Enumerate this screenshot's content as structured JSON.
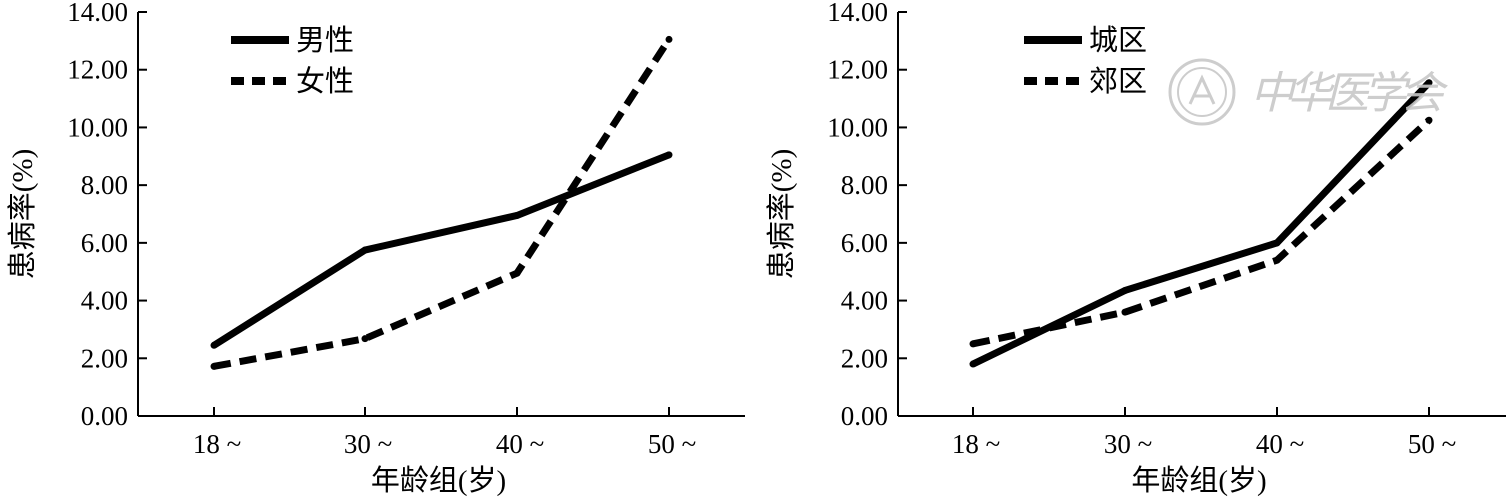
{
  "chart_data": [
    {
      "type": "line",
      "categories": [
        "18 ~",
        "30 ~",
        "40 ~",
        "50 ~"
      ],
      "series": [
        {
          "name": "男性",
          "style": "solid",
          "values": [
            2.45,
            5.75,
            6.95,
            9.05
          ]
        },
        {
          "name": "女性",
          "style": "dashed",
          "values": [
            1.72,
            2.68,
            4.95,
            13.05
          ]
        }
      ],
      "xlabel": "年龄组(岁)",
      "ylabel": "患病率(%)",
      "ylim": [
        0,
        14
      ],
      "yticks": [
        "0.00",
        "2.00",
        "4.00",
        "6.00",
        "8.00",
        "10.00",
        "12.00",
        "14.00"
      ],
      "grid": false,
      "legend": "top-left"
    },
    {
      "type": "line",
      "categories": [
        "18 ~",
        "30 ~",
        "40 ~",
        "50 ~"
      ],
      "series": [
        {
          "name": "城区",
          "style": "solid",
          "values": [
            1.8,
            4.35,
            6.0,
            11.55
          ]
        },
        {
          "name": "郊区",
          "style": "dashed",
          "values": [
            2.5,
            3.6,
            5.4,
            10.25
          ]
        }
      ],
      "xlabel": "年龄组(岁)",
      "ylabel": "患病率(%)",
      "ylim": [
        0,
        14
      ],
      "yticks": [
        "0.00",
        "2.00",
        "4.00",
        "6.00",
        "8.00",
        "10.00",
        "12.00",
        "14.00"
      ],
      "grid": false,
      "legend": "top-left"
    }
  ],
  "colors": {
    "line": "#000000",
    "axis": "#000000",
    "watermark": "#c8c8c8"
  },
  "watermark": {
    "text": "中华医学会",
    "icon": "seal-emblem-icon"
  }
}
